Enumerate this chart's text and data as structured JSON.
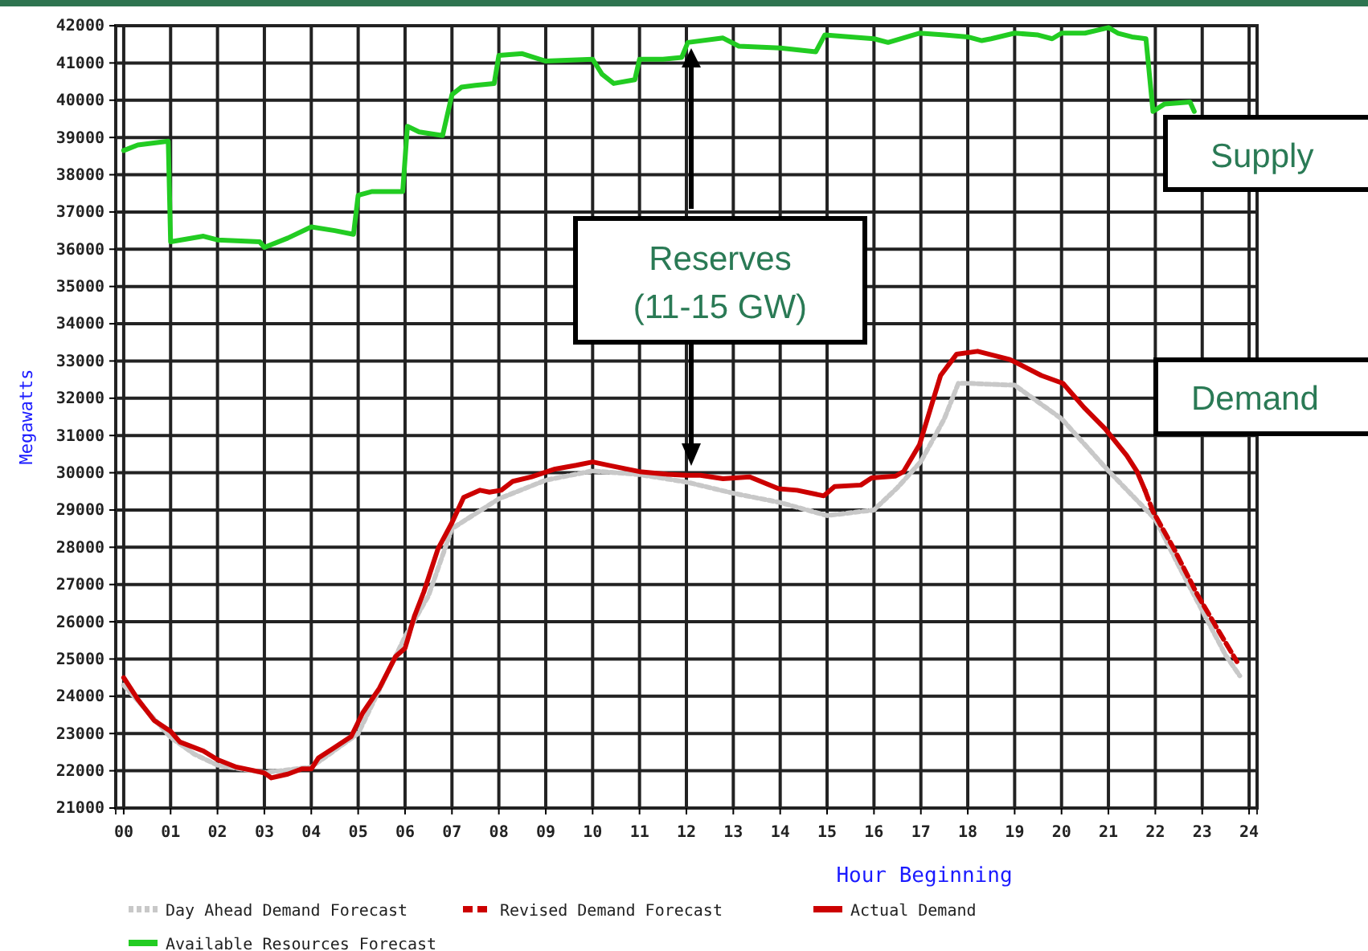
{
  "chart_data": {
    "type": "line",
    "xlabel": "Hour Beginning",
    "ylabel": "Megawatts",
    "xlim": [
      -0.17,
      24.17
    ],
    "ylim": [
      21000,
      42000
    ],
    "xticks": [
      {
        "value": 0,
        "label": "00"
      },
      {
        "value": 1,
        "label": "01"
      },
      {
        "value": 2,
        "label": "02"
      },
      {
        "value": 3,
        "label": "03"
      },
      {
        "value": 4,
        "label": "04"
      },
      {
        "value": 5,
        "label": "05"
      },
      {
        "value": 6,
        "label": "06"
      },
      {
        "value": 7,
        "label": "07"
      },
      {
        "value": 8,
        "label": "08"
      },
      {
        "value": 9,
        "label": "09"
      },
      10,
      11,
      12,
      13,
      14,
      15,
      16,
      17,
      18,
      19,
      20,
      21,
      22,
      23,
      24
    ],
    "yticks": [
      21000,
      22000,
      23000,
      24000,
      25000,
      26000,
      27000,
      28000,
      29000,
      30000,
      31000,
      32000,
      33000,
      34000,
      35000,
      36000,
      37000,
      38000,
      39000,
      40000,
      41000,
      42000
    ],
    "grid": true,
    "legend": "bottom",
    "marker": "none",
    "annotations": [
      "Reserves (11-15 GW)",
      "Supply",
      "Demand"
    ],
    "series": [
      {
        "name": "Day Ahead Demand Forecast",
        "color": "#c8c8c8",
        "line_style": "dotted",
        "x": [
          0,
          0.5,
          1,
          1.5,
          2,
          3,
          4,
          5,
          6,
          6.5,
          7,
          7.5,
          8,
          9,
          10,
          11,
          12,
          13,
          14,
          15,
          16,
          16.5,
          17,
          17.5,
          17.8,
          18,
          19,
          19.5,
          20,
          20.5,
          21,
          22,
          22.5,
          23,
          23.5,
          23.8
        ],
        "values": [
          24300,
          23600,
          22900,
          22450,
          22150,
          21950,
          22100,
          23000,
          25600,
          26700,
          28500,
          28900,
          29300,
          29800,
          30050,
          29950,
          29750,
          29450,
          29200,
          28850,
          29000,
          29600,
          30300,
          31450,
          32400,
          32400,
          32350,
          31900,
          31450,
          30750,
          30050,
          28750,
          27500,
          26300,
          25100,
          24550
        ]
      },
      {
        "name": "Revised Demand Forecast",
        "color": "#cc0000",
        "line_style": "dashed",
        "x": [
          21.78,
          21.95,
          22.4,
          22.9,
          23.3,
          23.74
        ],
        "values": [
          29530,
          28960,
          27950,
          26720,
          25860,
          24930
        ]
      },
      {
        "name": "Actual Demand",
        "color": "#cc0000",
        "line_style": "solid",
        "x": [
          0,
          0.3,
          0.65,
          1,
          1.2,
          1.7,
          2,
          2.4,
          2.75,
          3,
          3.15,
          3.5,
          3.8,
          4,
          4.15,
          4.5,
          4.85,
          5.1,
          5.45,
          5.8,
          6,
          6.2,
          6.4,
          6.7,
          7,
          7.25,
          7.6,
          7.8,
          8.05,
          8.3,
          8.7,
          9.2,
          9.65,
          10,
          10.45,
          11,
          11.6,
          12,
          12.3,
          12.78,
          13.35,
          13.97,
          14.36,
          14.93,
          15.16,
          15.72,
          15.95,
          16.46,
          16.63,
          16.97,
          17.42,
          17.76,
          18.21,
          18.9,
          19.57,
          20.03,
          20.48,
          20.93,
          21.39,
          21.61,
          21.78
        ],
        "values": [
          24500,
          23920,
          23350,
          23060,
          22770,
          22530,
          22300,
          22100,
          22010,
          21940,
          21810,
          21910,
          22050,
          22050,
          22340,
          22630,
          22920,
          23560,
          24210,
          25070,
          25290,
          26150,
          26800,
          27950,
          28660,
          29340,
          29530,
          29480,
          29530,
          29770,
          29890,
          30100,
          30200,
          30290,
          30170,
          30030,
          29960,
          29930,
          29930,
          29840,
          29890,
          29570,
          29530,
          29380,
          29630,
          29670,
          29860,
          29910,
          30030,
          30750,
          32610,
          33180,
          33260,
          33040,
          32610,
          32400,
          31750,
          31180,
          30460,
          30030,
          29530
        ]
      },
      {
        "name": "Available Resources Forecast",
        "color": "#22cc22",
        "line_style": "solid",
        "x": [
          0,
          0.3,
          0.95,
          1.0,
          1.7,
          2,
          2.9,
          3.0,
          3.5,
          4,
          4.5,
          4.9,
          5.0,
          5.3,
          5.95,
          6.05,
          6.3,
          6.8,
          7.0,
          7.2,
          7.5,
          7.9,
          8.0,
          8.5,
          9.0,
          10.0,
          10.2,
          10.45,
          10.9,
          11.0,
          11.5,
          11.9,
          12.03,
          12.78,
          13.12,
          14,
          14.76,
          14.95,
          15.5,
          16,
          16.3,
          16.97,
          17.5,
          18,
          18.3,
          18.5,
          19.0,
          19.5,
          19.8,
          20.0,
          20.5,
          21.0,
          21.2,
          21.5,
          21.8,
          21.95,
          22.2,
          22.74,
          22.83
        ],
        "values": [
          38650,
          38800,
          38900,
          36200,
          36350,
          36250,
          36200,
          36050,
          36300,
          36600,
          36500,
          36400,
          37450,
          37550,
          37550,
          39300,
          39150,
          39050,
          40150,
          40350,
          40400,
          40450,
          41200,
          41250,
          41050,
          41100,
          40700,
          40450,
          40550,
          41100,
          41100,
          41150,
          41550,
          41670,
          41450,
          41400,
          41300,
          41750,
          41700,
          41650,
          41550,
          41800,
          41750,
          41700,
          41600,
          41650,
          41800,
          41750,
          41650,
          41800,
          41800,
          41950,
          41800,
          41700,
          41650,
          39700,
          39900,
          39950,
          39700
        ]
      }
    ]
  }
}
